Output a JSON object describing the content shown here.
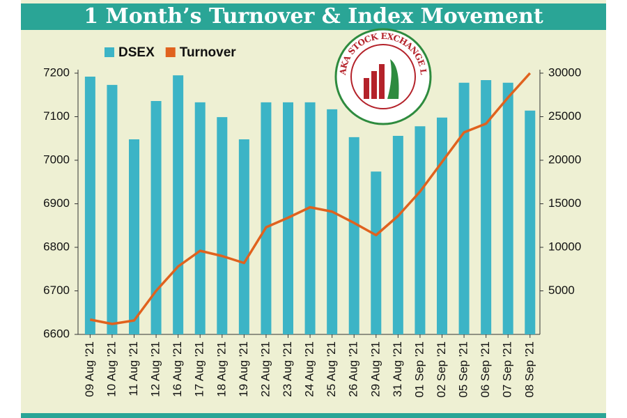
{
  "chart_data": {
    "type": "bar",
    "title": "1 Month’s Turnover & Index Movement",
    "categories": [
      "09 Aug '21",
      "10 Aug '21",
      "11 Aug '21",
      "12 Aug '21",
      "16 Aug '21",
      "17 Aug '21",
      "18 Aug '21",
      "19 Aug '21",
      "22 Aug '21",
      "23 Aug '21",
      "24 Aug '21",
      "25 Aug '21",
      "26 Aug '21",
      "29 Aug '21",
      "31 Aug '21",
      "01 Sep '21",
      "02 Sep '21",
      "05 Sep '21",
      "06 Sep '21",
      "07 Sep '21",
      "08 Sep '21"
    ],
    "series": [
      {
        "name": "DSEX",
        "type": "bar",
        "color": "#3cb4c6",
        "values": [
          7192,
          7173,
          7048,
          7136,
          7195,
          7133,
          7099,
          7048,
          7133,
          7133,
          7133,
          7117,
          7053,
          6974,
          7056,
          7078,
          7098,
          7178,
          7184,
          7178,
          7114
        ]
      },
      {
        "name": "Turnover",
        "type": "line",
        "axis": "y2",
        "color": "#e0621e",
        "values": [
          1700,
          1200,
          1600,
          5000,
          7800,
          9600,
          9000,
          8200,
          12300,
          13400,
          14600,
          14100,
          12800,
          11400,
          13600,
          16400,
          19800,
          23200,
          24200,
          27200,
          30000
        ]
      }
    ],
    "ylim": [
      6600,
      7200
    ],
    "yticks": [
      6600,
      6700,
      6800,
      6900,
      7000,
      7100,
      7200
    ],
    "y2lim": [
      0,
      30000
    ],
    "y2ticks": [
      5000,
      10000,
      15000,
      20000,
      25000,
      30000
    ],
    "legend": "top-left",
    "logo_text": "DHAKA STOCK EXCHANGE LTD."
  }
}
